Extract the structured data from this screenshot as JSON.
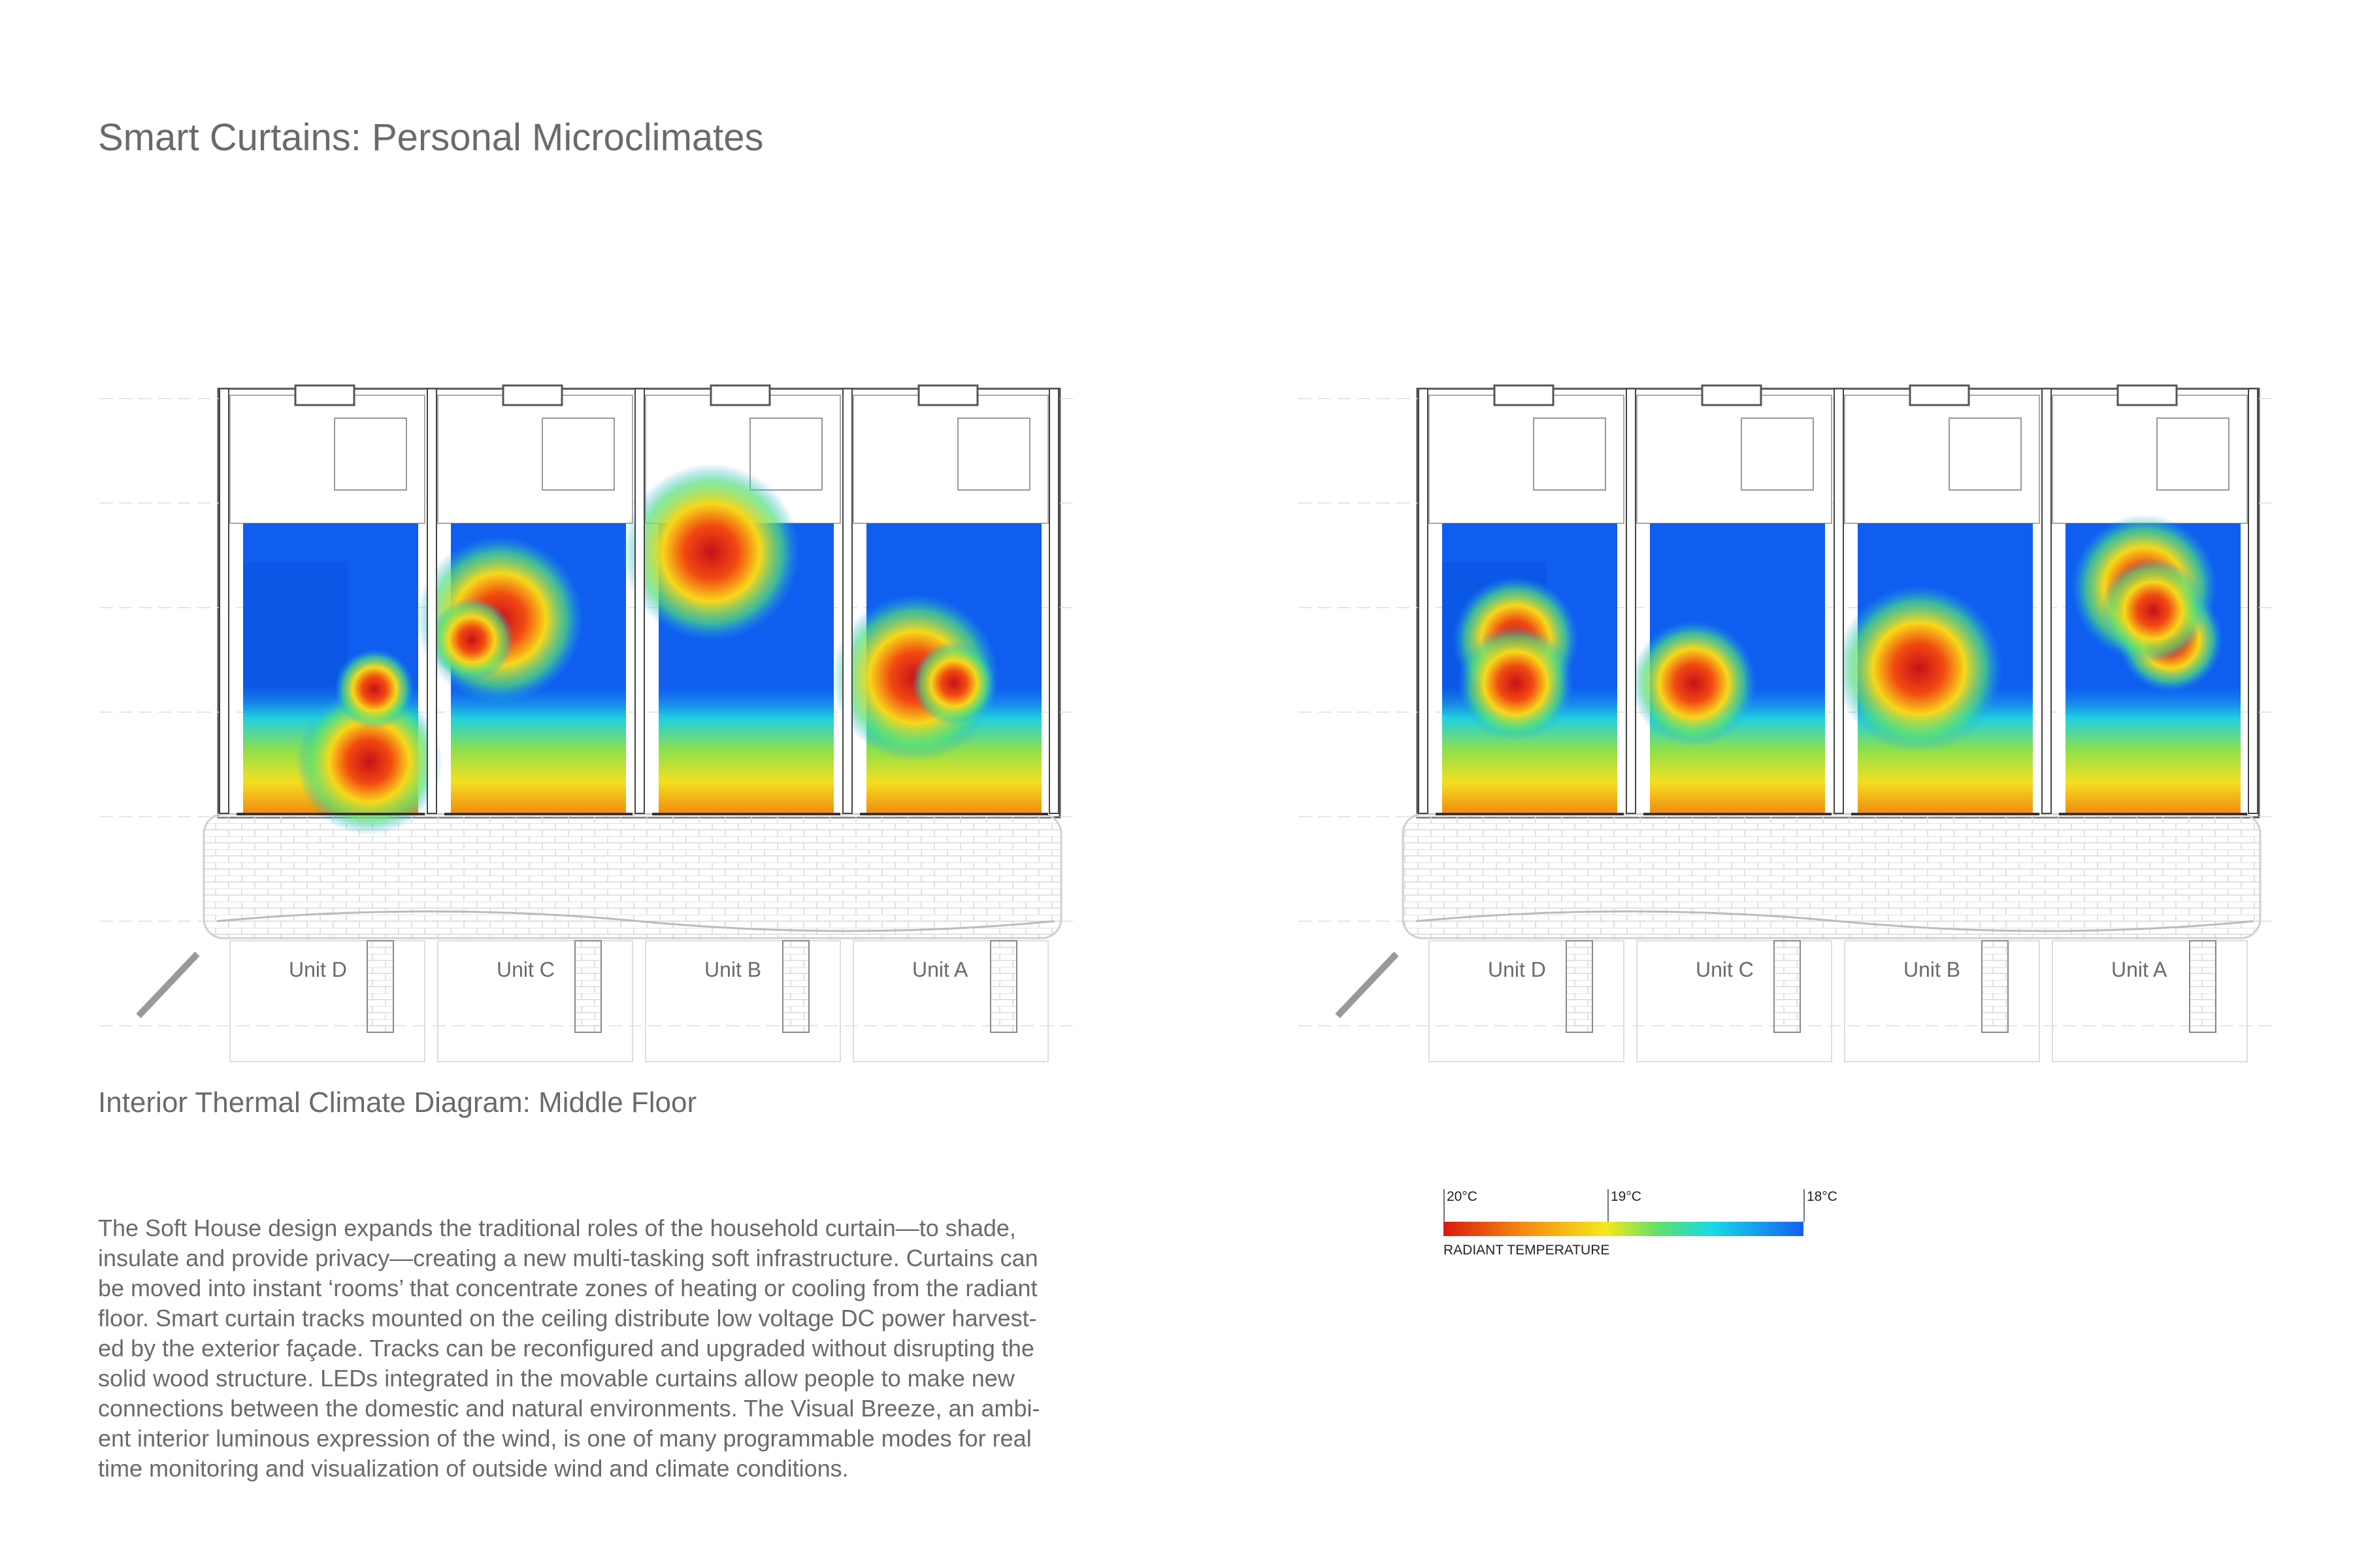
{
  "title": "Smart Curtains: Personal Microclimates",
  "subtitle": "Interior Thermal Climate Diagram: Middle Floor",
  "body": [
    "The Soft House design expands the traditional roles of the household curtain—to shade,",
    "insulate and provide privacy—creating a new multi-tasking soft infrastructure. Curtains can",
    "be moved into instant ‘rooms’ that concentrate zones of heating or cooling from the radiant",
    "floor.  Smart curtain tracks mounted on the ceiling distribute low voltage DC power harvest-",
    "ed by the exterior façade. Tracks can be reconfigured and upgraded without disrupting the",
    "solid wood structure.  LEDs integrated in the movable curtains allow people to make new",
    "connections between the domestic and natural environments.  The Visual Breeze, an ambi-",
    "ent interior luminous expression of the wind, is one of many programmable modes for real",
    "time monitoring and visualization of outside wind and climate conditions."
  ],
  "plans": [
    {
      "units": [
        "Unit D",
        "Unit C",
        "Unit B",
        "Unit A"
      ]
    },
    {
      "units": [
        "Unit D",
        "Unit C",
        "Unit B",
        "Unit A"
      ]
    }
  ],
  "legend": {
    "ticks": [
      "20°C",
      "19°C",
      "18°C"
    ],
    "label": "RADIANT TEMPERATURE"
  }
}
